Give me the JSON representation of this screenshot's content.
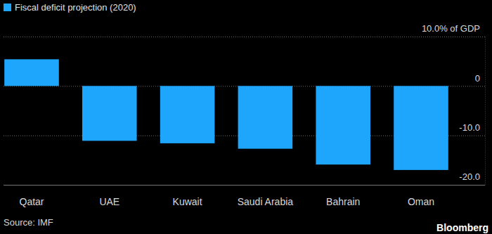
{
  "chart_data": {
    "type": "bar",
    "categories": [
      "Qatar",
      "UAE",
      "Kuwait",
      "Saudi Arabia",
      "Bahrain",
      "Oman"
    ],
    "series": [
      {
        "name": "Fiscal deficit projection (2020)",
        "color": "#1ea5fc",
        "values": [
          5.4,
          -11.1,
          -11.6,
          -12.7,
          -15.9,
          -17.0
        ]
      }
    ],
    "ylim": [
      -20,
      10
    ],
    "yticks": [
      {
        "value": 10,
        "label": "10.0% of GDP"
      },
      0,
      {
        "value": -10,
        "label": "-10.0"
      },
      {
        "value": -20,
        "label": "-20.0"
      }
    ],
    "grid": true,
    "legend": "top-left",
    "source": "Source: IMF",
    "brand": "Bloomberg"
  }
}
